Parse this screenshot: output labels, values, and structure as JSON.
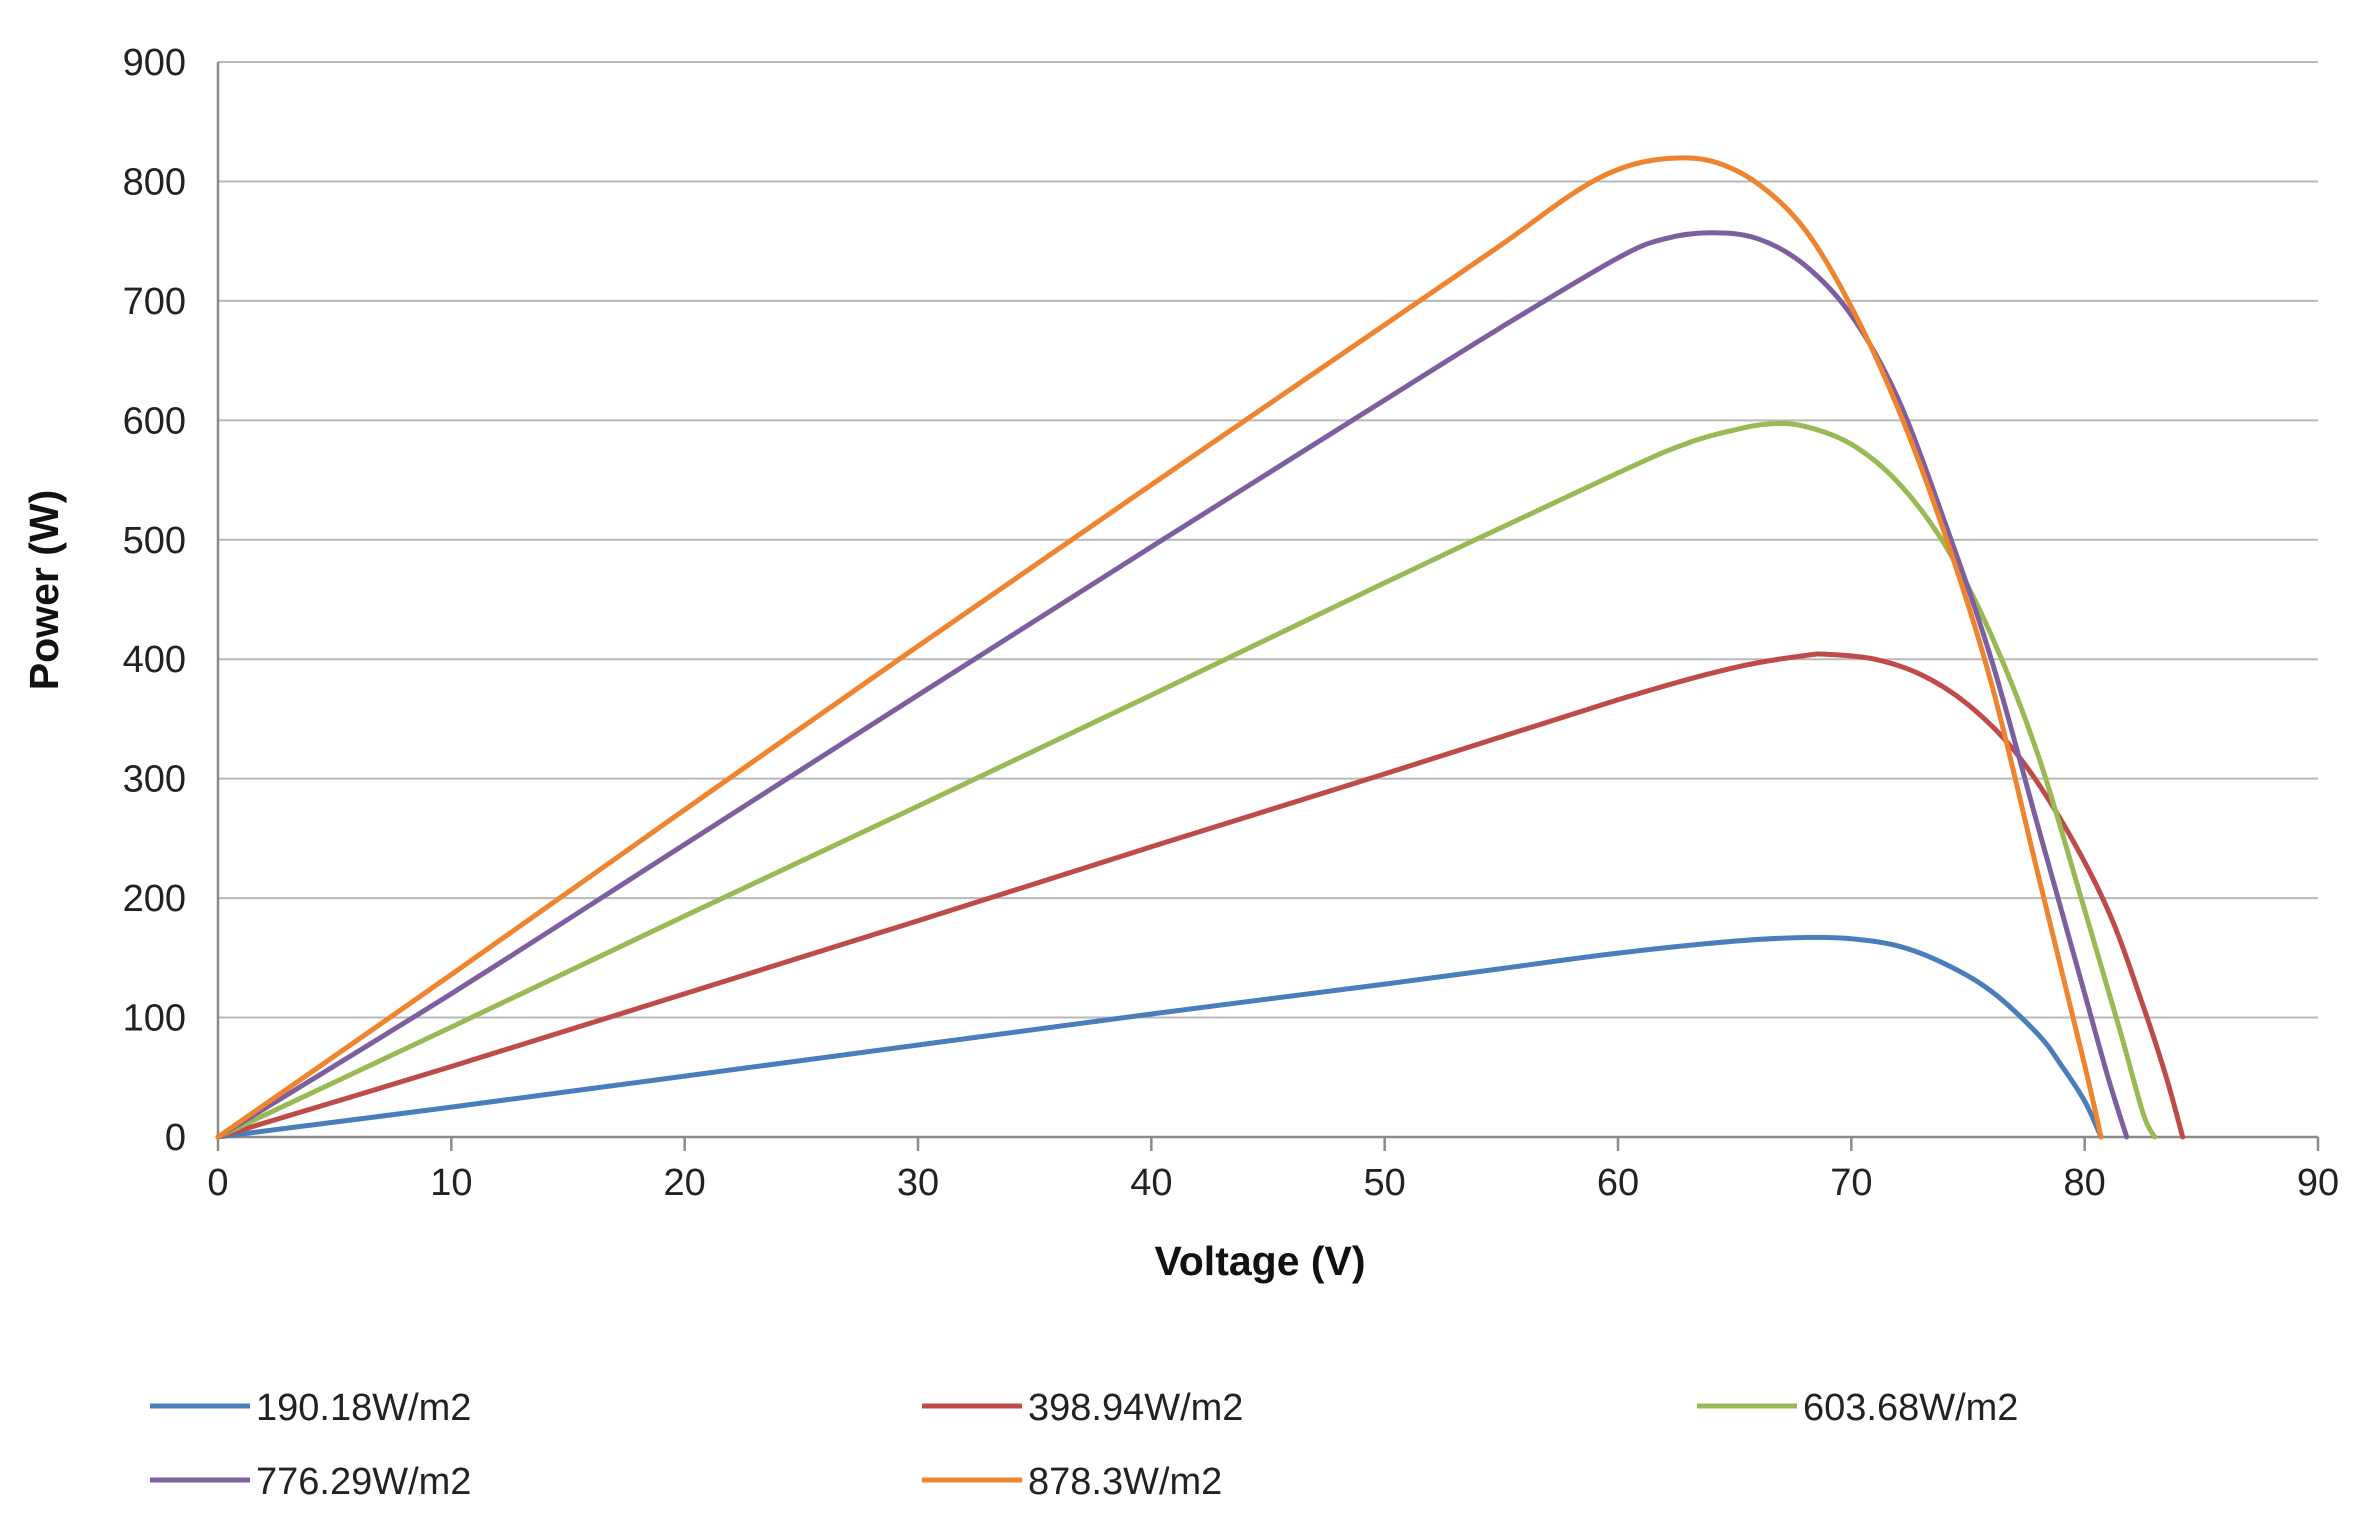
{
  "chart_data": {
    "type": "line",
    "title": "",
    "xlabel": "Voltage (V)",
    "ylabel": "Power (W)",
    "xlim": [
      0,
      90
    ],
    "ylim": [
      0,
      900
    ],
    "x_ticks": [
      0,
      10,
      20,
      30,
      40,
      50,
      60,
      70,
      80,
      90
    ],
    "y_ticks": [
      0,
      100,
      200,
      300,
      400,
      500,
      600,
      700,
      800,
      900
    ],
    "grid": "horizontal",
    "legend_position": "bottom",
    "series": [
      {
        "name": "190.18W/m2",
        "color": "#4a7ebb",
        "x": [
          0,
          10,
          20,
          30,
          40,
          50,
          55,
          60,
          65,
          68,
          70,
          72,
          74,
          76,
          78,
          79,
          80,
          80.7
        ],
        "y": [
          0,
          25,
          51,
          77,
          103,
          128,
          141,
          154,
          164,
          167,
          166,
          160,
          145,
          122,
          86,
          60,
          30,
          0
        ]
      },
      {
        "name": "398.94W/m2",
        "color": "#be4b48",
        "x": [
          0,
          10,
          20,
          30,
          40,
          50,
          60,
          65,
          68,
          69,
          71,
          73,
          75,
          77,
          79,
          81,
          82.5,
          83.5,
          84.2
        ],
        "y": [
          0,
          59,
          120,
          181,
          243,
          304,
          366,
          393,
          403,
          404,
          400,
          387,
          362,
          323,
          265,
          190,
          110,
          50,
          0
        ]
      },
      {
        "name": "603.68W/m2",
        "color": "#98b954",
        "x": [
          0,
          10,
          20,
          30,
          40,
          50,
          60,
          63,
          65,
          66.5,
          68,
          70,
          72,
          74,
          76,
          78,
          80,
          81.5,
          82.5,
          83
        ],
        "y": [
          0,
          92,
          185,
          277,
          370,
          464,
          556,
          581,
          592,
          597,
          595,
          580,
          548,
          496,
          420,
          320,
          190,
          90,
          20,
          0
        ]
      },
      {
        "name": "776.29W/m2",
        "color": "#7d5fa0",
        "x": [
          0,
          10,
          20,
          30,
          40,
          50,
          55,
          60,
          62,
          64,
          66,
          68,
          70,
          72,
          74,
          76,
          78,
          80,
          81,
          81.8
        ],
        "y": [
          0,
          120,
          245,
          370,
          494,
          617,
          678,
          736,
          752,
          757,
          752,
          730,
          688,
          618,
          515,
          400,
          260,
          120,
          50,
          0
        ]
      },
      {
        "name": "878.3W/m2",
        "color": "#f0832e",
        "x": [
          0,
          10,
          20,
          30,
          40,
          50,
          55,
          58,
          60,
          62,
          64,
          66,
          68,
          70,
          72,
          74,
          76,
          78,
          80,
          80.7
        ],
        "y": [
          0,
          136,
          274,
          411,
          546,
          680,
          747,
          789,
          810,
          819,
          817,
          798,
          760,
          695,
          610,
          505,
          380,
          220,
          60,
          0
        ]
      }
    ]
  }
}
